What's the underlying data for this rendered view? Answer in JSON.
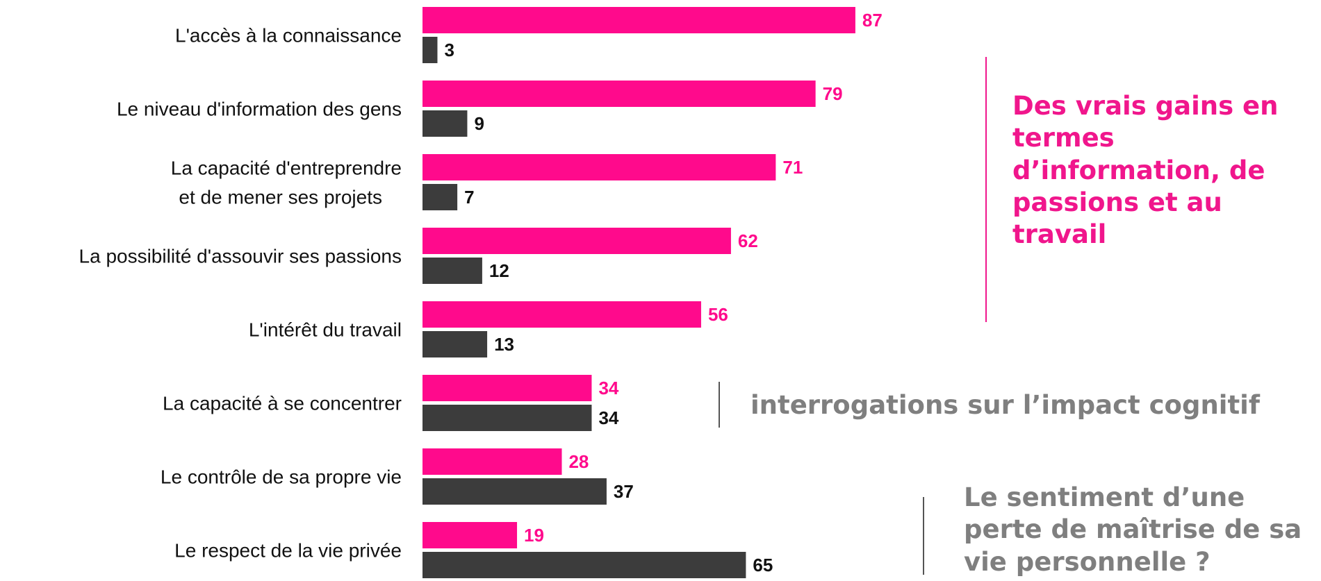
{
  "chart_data": {
    "type": "bar",
    "orientation": "horizontal",
    "categories": [
      [
        "L'accès à la connaissance"
      ],
      [
        "Le niveau d'information des gens"
      ],
      [
        "La capacité d'entreprendre",
        "et de mener ses projets"
      ],
      [
        "La possibilité d'assouvir ses passions"
      ],
      [
        "L'intérêt du travail"
      ],
      [
        "La capacité à se concentrer"
      ],
      [
        "Le contrôle de sa propre vie"
      ],
      [
        "Le respect de la vie privée"
      ]
    ],
    "series": [
      {
        "color": "#ff0a8c",
        "values": [
          87,
          79,
          71,
          62,
          56,
          34,
          28,
          19
        ]
      },
      {
        "color": "#3c3c3c",
        "values": [
          3,
          9,
          7,
          12,
          13,
          34,
          37,
          65
        ]
      }
    ],
    "xlim": [
      0,
      100
    ],
    "grid": false,
    "legend": "none"
  },
  "annotations": {
    "gains": {
      "text": "Des vrais gains en termes d’information, de passions et au travail",
      "color": "#f0168c"
    },
    "cognitive": {
      "text": "interrogations sur l’impact cognitif",
      "color": "#7f7f7f"
    },
    "privacy": {
      "text": "Le sentiment d’une perte de maîtrise de sa vie personnelle ?",
      "color": "#7f7f7f"
    }
  },
  "colors": {
    "accent": "#ff0a8c",
    "dark_bar": "#3c3c3c",
    "accent_line": "#f0168c",
    "gray_line": "#555555"
  }
}
